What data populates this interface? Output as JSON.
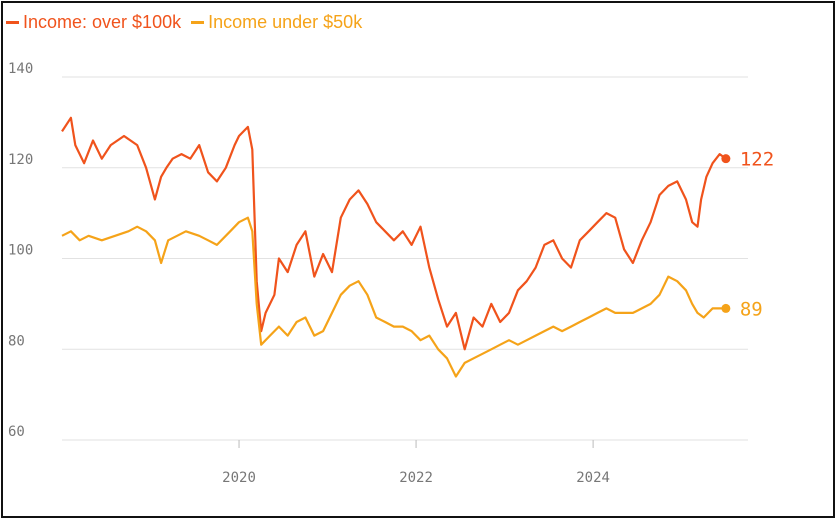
{
  "legend": {
    "items": [
      {
        "label": "Income: over $100k",
        "color": "#f0531c"
      },
      {
        "label": "Income under $50k",
        "color": "#f5a319"
      }
    ]
  },
  "chart_data": {
    "type": "line",
    "title": "",
    "xlabel": "",
    "ylabel": "",
    "xlim": [
      2018.0,
      2025.75
    ],
    "ylim": [
      60,
      140
    ],
    "y_ticks": [
      60,
      80,
      100,
      120,
      140
    ],
    "x_ticks": [
      2020,
      2022,
      2024
    ],
    "grid": "horizontal",
    "legend_position": "top-left",
    "series": [
      {
        "name": "Income: over $100k",
        "color": "#f0531c",
        "end_label": "122",
        "points": [
          [
            2018.0,
            128
          ],
          [
            2018.1,
            131
          ],
          [
            2018.15,
            125
          ],
          [
            2018.25,
            121
          ],
          [
            2018.35,
            126
          ],
          [
            2018.45,
            122
          ],
          [
            2018.55,
            125
          ],
          [
            2018.7,
            127
          ],
          [
            2018.85,
            125
          ],
          [
            2018.95,
            120
          ],
          [
            2019.05,
            113
          ],
          [
            2019.12,
            118
          ],
          [
            2019.18,
            120
          ],
          [
            2019.25,
            122
          ],
          [
            2019.35,
            123
          ],
          [
            2019.45,
            122
          ],
          [
            2019.55,
            125
          ],
          [
            2019.65,
            119
          ],
          [
            2019.75,
            117
          ],
          [
            2019.85,
            120
          ],
          [
            2019.95,
            125
          ],
          [
            2020.0,
            127
          ],
          [
            2020.1,
            129
          ],
          [
            2020.15,
            124
          ],
          [
            2020.2,
            95
          ],
          [
            2020.25,
            84
          ],
          [
            2020.3,
            88
          ],
          [
            2020.4,
            92
          ],
          [
            2020.45,
            100
          ],
          [
            2020.55,
            97
          ],
          [
            2020.65,
            103
          ],
          [
            2020.75,
            106
          ],
          [
            2020.85,
            96
          ],
          [
            2020.95,
            101
          ],
          [
            2021.05,
            97
          ],
          [
            2021.15,
            109
          ],
          [
            2021.25,
            113
          ],
          [
            2021.35,
            115
          ],
          [
            2021.45,
            112
          ],
          [
            2021.55,
            108
          ],
          [
            2021.65,
            106
          ],
          [
            2021.75,
            104
          ],
          [
            2021.85,
            106
          ],
          [
            2021.95,
            103
          ],
          [
            2022.05,
            107
          ],
          [
            2022.15,
            98
          ],
          [
            2022.25,
            91
          ],
          [
            2022.35,
            85
          ],
          [
            2022.45,
            88
          ],
          [
            2022.55,
            80
          ],
          [
            2022.65,
            87
          ],
          [
            2022.75,
            85
          ],
          [
            2022.85,
            90
          ],
          [
            2022.95,
            86
          ],
          [
            2023.05,
            88
          ],
          [
            2023.15,
            93
          ],
          [
            2023.25,
            95
          ],
          [
            2023.35,
            98
          ],
          [
            2023.45,
            103
          ],
          [
            2023.55,
            104
          ],
          [
            2023.65,
            100
          ],
          [
            2023.75,
            98
          ],
          [
            2023.85,
            104
          ],
          [
            2023.95,
            106
          ],
          [
            2024.05,
            108
          ],
          [
            2024.15,
            110
          ],
          [
            2024.25,
            109
          ],
          [
            2024.35,
            102
          ],
          [
            2024.45,
            99
          ],
          [
            2024.55,
            104
          ],
          [
            2024.65,
            108
          ],
          [
            2024.75,
            114
          ],
          [
            2024.85,
            116
          ],
          [
            2024.95,
            117
          ],
          [
            2025.05,
            113
          ],
          [
            2025.12,
            108
          ],
          [
            2025.18,
            107
          ],
          [
            2025.22,
            113
          ],
          [
            2025.28,
            118
          ],
          [
            2025.35,
            121
          ],
          [
            2025.43,
            123
          ],
          [
            2025.5,
            122
          ]
        ]
      },
      {
        "name": "Income under $50k",
        "color": "#f5a319",
        "end_label": "89",
        "points": [
          [
            2018.0,
            105
          ],
          [
            2018.1,
            106
          ],
          [
            2018.2,
            104
          ],
          [
            2018.3,
            105
          ],
          [
            2018.45,
            104
          ],
          [
            2018.6,
            105
          ],
          [
            2018.75,
            106
          ],
          [
            2018.85,
            107
          ],
          [
            2018.95,
            106
          ],
          [
            2019.05,
            104
          ],
          [
            2019.12,
            99
          ],
          [
            2019.2,
            104
          ],
          [
            2019.3,
            105
          ],
          [
            2019.4,
            106
          ],
          [
            2019.55,
            105
          ],
          [
            2019.65,
            104
          ],
          [
            2019.75,
            103
          ],
          [
            2019.9,
            106
          ],
          [
            2020.0,
            108
          ],
          [
            2020.1,
            109
          ],
          [
            2020.15,
            106
          ],
          [
            2020.2,
            90
          ],
          [
            2020.25,
            81
          ],
          [
            2020.35,
            83
          ],
          [
            2020.45,
            85
          ],
          [
            2020.55,
            83
          ],
          [
            2020.65,
            86
          ],
          [
            2020.75,
            87
          ],
          [
            2020.85,
            83
          ],
          [
            2020.95,
            84
          ],
          [
            2021.05,
            88
          ],
          [
            2021.15,
            92
          ],
          [
            2021.25,
            94
          ],
          [
            2021.35,
            95
          ],
          [
            2021.45,
            92
          ],
          [
            2021.55,
            87
          ],
          [
            2021.65,
            86
          ],
          [
            2021.75,
            85
          ],
          [
            2021.85,
            85
          ],
          [
            2021.95,
            84
          ],
          [
            2022.05,
            82
          ],
          [
            2022.15,
            83
          ],
          [
            2022.25,
            80
          ],
          [
            2022.35,
            78
          ],
          [
            2022.45,
            74
          ],
          [
            2022.55,
            77
          ],
          [
            2022.65,
            78
          ],
          [
            2022.75,
            79
          ],
          [
            2022.85,
            80
          ],
          [
            2022.95,
            81
          ],
          [
            2023.05,
            82
          ],
          [
            2023.15,
            81
          ],
          [
            2023.25,
            82
          ],
          [
            2023.35,
            83
          ],
          [
            2023.45,
            84
          ],
          [
            2023.55,
            85
          ],
          [
            2023.65,
            84
          ],
          [
            2023.75,
            85
          ],
          [
            2023.85,
            86
          ],
          [
            2023.95,
            87
          ],
          [
            2024.05,
            88
          ],
          [
            2024.15,
            89
          ],
          [
            2024.25,
            88
          ],
          [
            2024.35,
            88
          ],
          [
            2024.45,
            88
          ],
          [
            2024.55,
            89
          ],
          [
            2024.65,
            90
          ],
          [
            2024.75,
            92
          ],
          [
            2024.85,
            96
          ],
          [
            2024.95,
            95
          ],
          [
            2025.05,
            93
          ],
          [
            2025.12,
            90
          ],
          [
            2025.18,
            88
          ],
          [
            2025.25,
            87
          ],
          [
            2025.35,
            89
          ],
          [
            2025.43,
            89
          ],
          [
            2025.5,
            89
          ]
        ]
      }
    ]
  }
}
